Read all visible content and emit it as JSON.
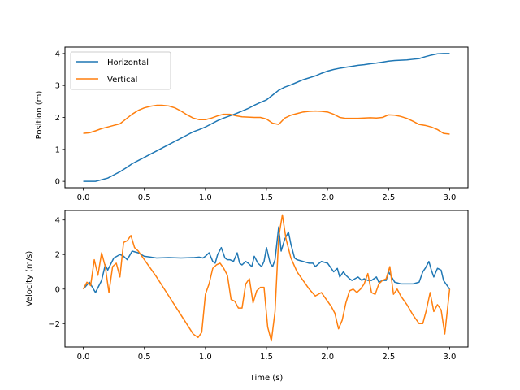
{
  "colors": {
    "horizontal": "#1f77b4",
    "vertical": "#ff7f0e",
    "axes": "#000000",
    "background": "#ffffff"
  },
  "chart_data": [
    {
      "type": "line",
      "title": "",
      "xlabel": "",
      "ylabel": "Position (m)",
      "xlim": [
        -0.15,
        3.15
      ],
      "ylim": [
        -0.2,
        4.2
      ],
      "xticks": [
        0.0,
        0.5,
        1.0,
        1.5,
        2.0,
        2.5,
        3.0
      ],
      "xtick_labels": [
        "0.0",
        "0.5",
        "1.0",
        "1.5",
        "2.0",
        "2.5",
        "3.0"
      ],
      "yticks": [
        0,
        1,
        2,
        3,
        4
      ],
      "ytick_labels": [
        "0",
        "1",
        "2",
        "3",
        "4"
      ],
      "grid": false,
      "legend": {
        "placement": "upper-left",
        "entries": [
          "Horizontal",
          "Vertical"
        ]
      },
      "series": [
        {
          "name": "Horizontal",
          "color": "#1f77b4",
          "x": [
            0.0,
            0.05,
            0.1,
            0.15,
            0.2,
            0.25,
            0.3,
            0.35,
            0.4,
            0.45,
            0.5,
            0.55,
            0.6,
            0.65,
            0.7,
            0.75,
            0.8,
            0.85,
            0.9,
            0.95,
            1.0,
            1.05,
            1.1,
            1.15,
            1.2,
            1.25,
            1.3,
            1.35,
            1.4,
            1.45,
            1.5,
            1.55,
            1.6,
            1.65,
            1.7,
            1.75,
            1.8,
            1.85,
            1.9,
            1.95,
            2.0,
            2.05,
            2.1,
            2.15,
            2.2,
            2.25,
            2.3,
            2.35,
            2.4,
            2.45,
            2.5,
            2.55,
            2.6,
            2.65,
            2.7,
            2.75,
            2.8,
            2.85,
            2.9,
            2.95,
            3.0
          ],
          "y": [
            0.0,
            0.0,
            0.0,
            0.05,
            0.1,
            0.2,
            0.3,
            0.42,
            0.55,
            0.65,
            0.75,
            0.85,
            0.95,
            1.05,
            1.15,
            1.25,
            1.35,
            1.45,
            1.55,
            1.62,
            1.7,
            1.8,
            1.9,
            1.98,
            2.05,
            2.12,
            2.2,
            2.28,
            2.38,
            2.47,
            2.55,
            2.7,
            2.85,
            2.95,
            3.02,
            3.1,
            3.18,
            3.24,
            3.3,
            3.38,
            3.45,
            3.5,
            3.54,
            3.57,
            3.6,
            3.63,
            3.65,
            3.68,
            3.7,
            3.73,
            3.76,
            3.78,
            3.79,
            3.8,
            3.82,
            3.84,
            3.9,
            3.95,
            3.99,
            4.0,
            4.0
          ]
        },
        {
          "name": "Vertical",
          "color": "#ff7f0e",
          "x": [
            0.0,
            0.05,
            0.1,
            0.15,
            0.2,
            0.25,
            0.3,
            0.35,
            0.4,
            0.45,
            0.5,
            0.55,
            0.6,
            0.65,
            0.7,
            0.75,
            0.8,
            0.85,
            0.9,
            0.95,
            1.0,
            1.05,
            1.1,
            1.15,
            1.2,
            1.25,
            1.3,
            1.35,
            1.4,
            1.45,
            1.5,
            1.55,
            1.6,
            1.65,
            1.7,
            1.75,
            1.8,
            1.85,
            1.9,
            1.95,
            2.0,
            2.05,
            2.1,
            2.15,
            2.2,
            2.25,
            2.3,
            2.35,
            2.4,
            2.45,
            2.5,
            2.55,
            2.6,
            2.65,
            2.7,
            2.75,
            2.8,
            2.85,
            2.9,
            2.95,
            3.0
          ],
          "y": [
            1.5,
            1.52,
            1.58,
            1.65,
            1.7,
            1.75,
            1.8,
            1.95,
            2.1,
            2.22,
            2.3,
            2.35,
            2.38,
            2.38,
            2.36,
            2.3,
            2.2,
            2.08,
            1.98,
            1.93,
            1.93,
            1.98,
            2.05,
            2.1,
            2.1,
            2.05,
            2.02,
            2.01,
            2.0,
            2.0,
            1.95,
            1.82,
            1.78,
            1.98,
            2.07,
            2.12,
            2.17,
            2.19,
            2.2,
            2.19,
            2.17,
            2.1,
            2.0,
            1.97,
            1.97,
            1.97,
            1.98,
            1.99,
            1.98,
            2.0,
            2.08,
            2.07,
            2.03,
            1.97,
            1.88,
            1.78,
            1.75,
            1.7,
            1.62,
            1.5,
            1.48
          ]
        }
      ]
    },
    {
      "type": "line",
      "title": "",
      "xlabel": "Time (s)",
      "ylabel": "Velocity (m/s)",
      "xlim": [
        -0.15,
        3.15
      ],
      "ylim": [
        -3.35,
        4.55
      ],
      "xticks": [
        0.0,
        0.5,
        1.0,
        1.5,
        2.0,
        2.5,
        3.0
      ],
      "xtick_labels": [
        "0.0",
        "0.5",
        "1.0",
        "1.5",
        "2.0",
        "2.5",
        "3.0"
      ],
      "yticks": [
        -2,
        0,
        2,
        4
      ],
      "ytick_labels": [
        "−2",
        "0",
        "2",
        "4"
      ],
      "grid": false,
      "series": [
        {
          "name": "Horizontal",
          "color": "#1f77b4",
          "x": [
            0.0,
            0.05,
            0.1,
            0.15,
            0.18,
            0.2,
            0.25,
            0.3,
            0.33,
            0.36,
            0.4,
            0.45,
            0.5,
            0.55,
            0.6,
            0.7,
            0.8,
            0.9,
            0.95,
            0.98,
            1.0,
            1.03,
            1.06,
            1.08,
            1.1,
            1.13,
            1.16,
            1.18,
            1.2,
            1.23,
            1.26,
            1.28,
            1.3,
            1.33,
            1.35,
            1.38,
            1.4,
            1.43,
            1.46,
            1.48,
            1.5,
            1.53,
            1.55,
            1.57,
            1.6,
            1.62,
            1.65,
            1.68,
            1.7,
            1.73,
            1.75,
            1.8,
            1.85,
            1.88,
            1.9,
            1.95,
            2.0,
            2.05,
            2.08,
            2.1,
            2.13,
            2.15,
            2.18,
            2.2,
            2.25,
            2.28,
            2.3,
            2.33,
            2.36,
            2.4,
            2.42,
            2.45,
            2.48,
            2.5,
            2.55,
            2.6,
            2.65,
            2.7,
            2.75,
            2.78,
            2.8,
            2.83,
            2.85,
            2.87,
            2.9,
            2.93,
            2.95,
            3.0
          ],
          "y": [
            0.0,
            0.4,
            -0.2,
            0.5,
            1.4,
            1.1,
            1.8,
            2.0,
            1.9,
            1.7,
            2.2,
            2.1,
            1.9,
            1.85,
            1.8,
            1.82,
            1.8,
            1.82,
            1.85,
            1.8,
            1.9,
            2.1,
            1.6,
            1.5,
            2.0,
            2.4,
            1.8,
            1.7,
            1.7,
            1.6,
            2.1,
            1.5,
            1.4,
            1.6,
            1.5,
            1.3,
            1.9,
            1.5,
            1.3,
            1.6,
            2.4,
            1.5,
            1.3,
            1.7,
            3.6,
            2.2,
            2.9,
            3.3,
            2.6,
            1.8,
            1.7,
            1.6,
            1.5,
            1.5,
            1.3,
            1.6,
            1.5,
            1.0,
            1.2,
            0.7,
            1.0,
            0.8,
            0.6,
            0.5,
            0.7,
            0.5,
            0.6,
            0.5,
            0.5,
            0.7,
            0.4,
            0.5,
            0.5,
            1.0,
            0.4,
            0.3,
            0.3,
            0.3,
            0.4,
            1.0,
            1.2,
            1.6,
            1.1,
            0.7,
            1.2,
            1.1,
            0.5,
            0.0
          ]
        },
        {
          "name": "Vertical",
          "color": "#ff7f0e",
          "x": [
            0.0,
            0.03,
            0.06,
            0.09,
            0.12,
            0.15,
            0.18,
            0.21,
            0.24,
            0.27,
            0.3,
            0.33,
            0.36,
            0.39,
            0.42,
            0.45,
            0.5,
            0.6,
            0.7,
            0.8,
            0.9,
            0.94,
            0.97,
            1.0,
            1.03,
            1.06,
            1.09,
            1.12,
            1.15,
            1.18,
            1.21,
            1.24,
            1.27,
            1.3,
            1.33,
            1.36,
            1.39,
            1.42,
            1.45,
            1.48,
            1.51,
            1.54,
            1.57,
            1.6,
            1.63,
            1.66,
            1.7,
            1.75,
            1.8,
            1.85,
            1.9,
            1.95,
            2.0,
            2.03,
            2.06,
            2.09,
            2.12,
            2.15,
            2.18,
            2.21,
            2.24,
            2.27,
            2.3,
            2.33,
            2.36,
            2.39,
            2.42,
            2.45,
            2.48,
            2.51,
            2.54,
            2.57,
            2.6,
            2.65,
            2.7,
            2.75,
            2.78,
            2.81,
            2.84,
            2.87,
            2.9,
            2.93,
            2.96,
            3.0
          ],
          "y": [
            0.0,
            0.4,
            0.2,
            1.7,
            0.8,
            2.1,
            1.3,
            -0.2,
            1.3,
            1.5,
            0.7,
            2.7,
            2.8,
            3.1,
            2.4,
            2.2,
            1.7,
            0.7,
            -0.4,
            -1.5,
            -2.6,
            -2.8,
            -2.5,
            -0.3,
            0.3,
            1.2,
            1.4,
            1.5,
            1.2,
            0.8,
            -0.6,
            -0.7,
            -1.1,
            -1.1,
            0.3,
            0.6,
            -0.8,
            -0.1,
            0.1,
            0.1,
            -2.2,
            -3.0,
            -1.3,
            3.0,
            4.3,
            2.9,
            1.8,
            1.0,
            0.5,
            0.0,
            -0.4,
            -0.2,
            -0.7,
            -1.0,
            -1.4,
            -2.3,
            -1.8,
            -0.8,
            -0.1,
            0.0,
            -0.2,
            0.0,
            0.3,
            0.9,
            -0.2,
            -0.3,
            0.3,
            0.5,
            0.6,
            1.3,
            -0.3,
            0.0,
            -0.4,
            -0.9,
            -1.5,
            -2.0,
            -2.0,
            -1.2,
            -0.2,
            -1.3,
            -0.9,
            -1.2,
            -2.6,
            0.0
          ]
        }
      ]
    }
  ]
}
